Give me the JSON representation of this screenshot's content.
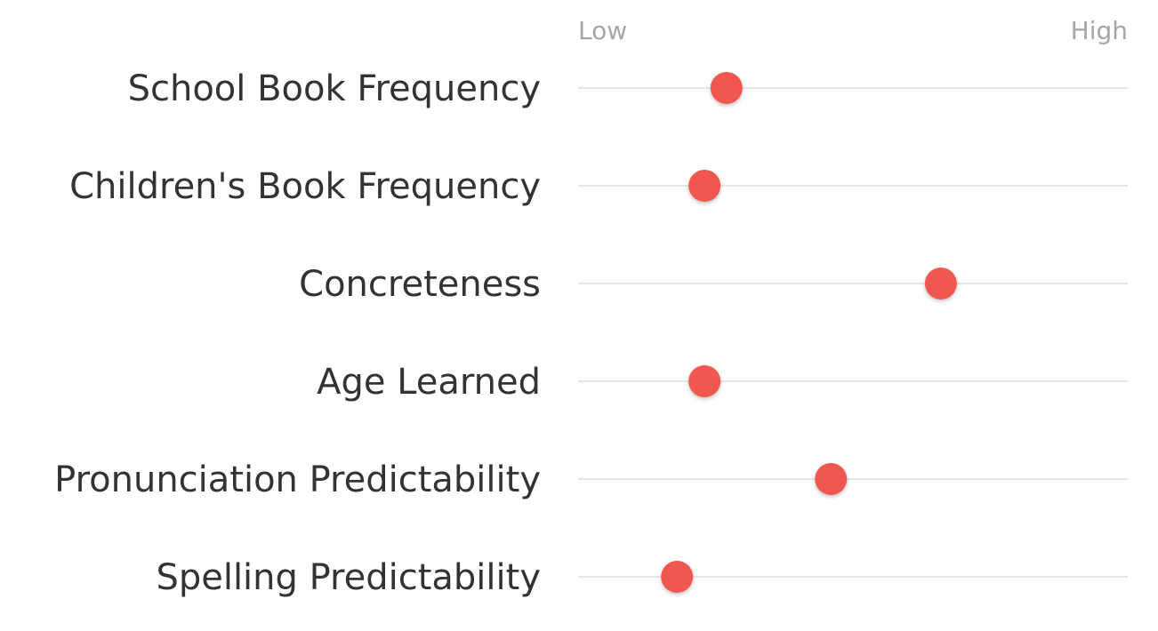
{
  "chart_data": {
    "type": "scatter",
    "x_axis": {
      "min_label": "Low",
      "max_label": "High",
      "range": [
        0,
        1
      ]
    },
    "rows": [
      {
        "label": "School Book Frequency",
        "value": 0.27
      },
      {
        "label": "Children's Book Frequency",
        "value": 0.23
      },
      {
        "label": "Concreteness",
        "value": 0.66
      },
      {
        "label": "Age Learned",
        "value": 0.23
      },
      {
        "label": "Pronunciation Predictability",
        "value": 0.46
      },
      {
        "label": "Spelling Predictability",
        "value": 0.18
      }
    ],
    "grid": false,
    "legend": "none"
  },
  "colors": {
    "dot": "#f0584f",
    "track": "#d4d4d4",
    "label": "#333333",
    "axis_label": "#a6a6a6"
  }
}
